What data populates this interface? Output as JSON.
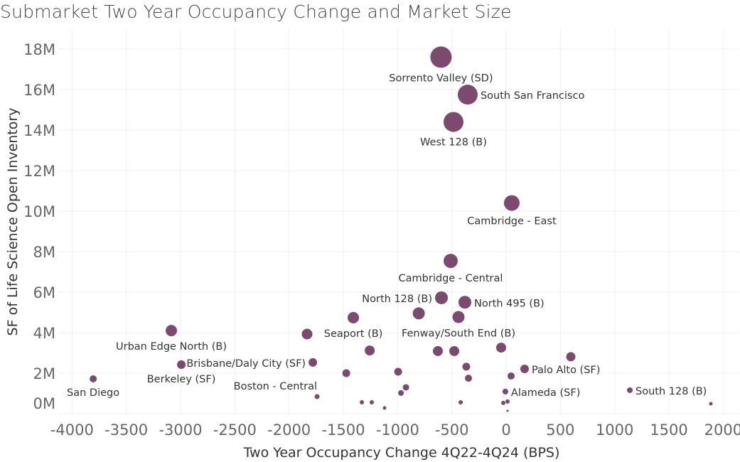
{
  "chart_data": {
    "type": "scatter",
    "title": "Submarket Two Year Occupancy Change and Market Size",
    "xlabel": "Two Year Occupancy Change 4Q22-4Q24 (BPS)",
    "ylabel": "SF of Life Science Open Inventory",
    "xlim": [
      -4200,
      2150
    ],
    "ylim": [
      0,
      19000000
    ],
    "x_ticks": [
      -4000,
      -3500,
      -3000,
      -2500,
      -2000,
      -1500,
      -1000,
      -500,
      0,
      500,
      1000,
      1500,
      2000
    ],
    "x_tick_labels": [
      "-4000",
      "-3500",
      "-3000",
      "-2500",
      "-2000",
      "-1500",
      "-1000",
      "-500",
      "0",
      "500",
      "1000",
      "1500",
      "2000"
    ],
    "y_ticks": [
      0,
      2000000,
      4000000,
      6000000,
      8000000,
      10000000,
      12000000,
      14000000,
      16000000,
      18000000
    ],
    "y_tick_labels": [
      "0M",
      "2M",
      "4M",
      "6M",
      "8M",
      "10M",
      "12M",
      "14M",
      "16M",
      "18M"
    ],
    "grid": true,
    "marker_color": "#7b4a6e",
    "size_encoding": "market size (relative)",
    "points": [
      {
        "x": -600,
        "y": 17600000,
        "size": 15,
        "label": "Sorrento Valley (SD)",
        "label_pos": "below"
      },
      {
        "x": -354,
        "y": 15750000,
        "size": 14,
        "label": "South San Francisco",
        "label_pos": "right"
      },
      {
        "x": -485,
        "y": 14400000,
        "size": 14,
        "label": "West 128 (B)",
        "label_pos": "below"
      },
      {
        "x": 52,
        "y": 10400000,
        "size": 11,
        "label": "Cambridge - East",
        "label_pos": "below"
      },
      {
        "x": -511,
        "y": 7540000,
        "size": 10,
        "label": "Cambridge - Central",
        "label_pos": "below"
      },
      {
        "x": -596,
        "y": 5720000,
        "size": 9,
        "label": "North 128 (B)",
        "label_pos": "left"
      },
      {
        "x": -380,
        "y": 5500000,
        "size": 9,
        "label": "North 495 (B)",
        "label_pos": "right"
      },
      {
        "x": -805,
        "y": 4950000,
        "size": 8.5,
        "label": "",
        "label_pos": ""
      },
      {
        "x": -439,
        "y": 4770000,
        "size": 8.5,
        "label": "Fenway/South End (B)",
        "label_pos": "below"
      },
      {
        "x": -1408,
        "y": 4740000,
        "size": 8,
        "label": "Seaport (B)",
        "label_pos": "below"
      },
      {
        "x": -3085,
        "y": 4100000,
        "size": 8,
        "label": "Urban Edge North (B)",
        "label_pos": "below"
      },
      {
        "x": -1834,
        "y": 3930000,
        "size": 7.5,
        "label": "",
        "label_pos": ""
      },
      {
        "x": -1257,
        "y": 3120000,
        "size": 7,
        "label": "",
        "label_pos": ""
      },
      {
        "x": -629,
        "y": 3090000,
        "size": 7,
        "label": "",
        "label_pos": ""
      },
      {
        "x": -478,
        "y": 3090000,
        "size": 7,
        "label": "",
        "label_pos": ""
      },
      {
        "x": -46,
        "y": 3260000,
        "size": 7,
        "label": "",
        "label_pos": ""
      },
      {
        "x": 596,
        "y": 2810000,
        "size": 6.5,
        "label": "",
        "label_pos": ""
      },
      {
        "x": 170,
        "y": 2210000,
        "size": 6,
        "label": "Palo Alto (SF)",
        "label_pos": "right"
      },
      {
        "x": -1781,
        "y": 2530000,
        "size": 6,
        "label": "Brisbane/Daly City (SF)",
        "label_pos": "left"
      },
      {
        "x": -2993,
        "y": 2420000,
        "size": 6,
        "label": "Berkeley (SF)",
        "label_pos": "below"
      },
      {
        "x": -1473,
        "y": 2000000,
        "size": 5.5,
        "label": "",
        "label_pos": ""
      },
      {
        "x": -995,
        "y": 2070000,
        "size": 5.5,
        "label": "",
        "label_pos": ""
      },
      {
        "x": -367,
        "y": 2320000,
        "size": 5.5,
        "label": "",
        "label_pos": ""
      },
      {
        "x": -347,
        "y": 1750000,
        "size": 5,
        "label": "",
        "label_pos": ""
      },
      {
        "x": 46,
        "y": 1860000,
        "size": 5,
        "label": "",
        "label_pos": ""
      },
      {
        "x": -3805,
        "y": 1720000,
        "size": 5,
        "label": "San Diego",
        "label_pos": "below"
      },
      {
        "x": -1742,
        "y": 840000,
        "size": 3.5,
        "label": "Boston - Central",
        "label_pos": "left-above"
      },
      {
        "x": -923,
        "y": 1300000,
        "size": 4.5,
        "label": "",
        "label_pos": ""
      },
      {
        "x": -969,
        "y": 1020000,
        "size": 4,
        "label": "",
        "label_pos": ""
      },
      {
        "x": -7,
        "y": 1090000,
        "size": 4,
        "label": "Alameda (SF)",
        "label_pos": "right"
      },
      {
        "x": 1140,
        "y": 1160000,
        "size": 4,
        "label": "South 128 (B)",
        "label_pos": "right"
      },
      {
        "x": -1329,
        "y": 560000,
        "size": 3,
        "label": "",
        "label_pos": ""
      },
      {
        "x": -1238,
        "y": 560000,
        "size": 3,
        "label": "",
        "label_pos": ""
      },
      {
        "x": -1120,
        "y": 280000,
        "size": 2.5,
        "label": "",
        "label_pos": ""
      },
      {
        "x": -419,
        "y": 560000,
        "size": 3,
        "label": "",
        "label_pos": ""
      },
      {
        "x": -26,
        "y": 530000,
        "size": 3,
        "label": "",
        "label_pos": ""
      },
      {
        "x": 13,
        "y": 600000,
        "size": 3,
        "label": "",
        "label_pos": ""
      },
      {
        "x": 13,
        "y": 140000,
        "size": 1.5,
        "label": "",
        "label_pos": ""
      },
      {
        "x": 1886,
        "y": 490000,
        "size": 2.5,
        "label": "",
        "label_pos": ""
      }
    ]
  }
}
